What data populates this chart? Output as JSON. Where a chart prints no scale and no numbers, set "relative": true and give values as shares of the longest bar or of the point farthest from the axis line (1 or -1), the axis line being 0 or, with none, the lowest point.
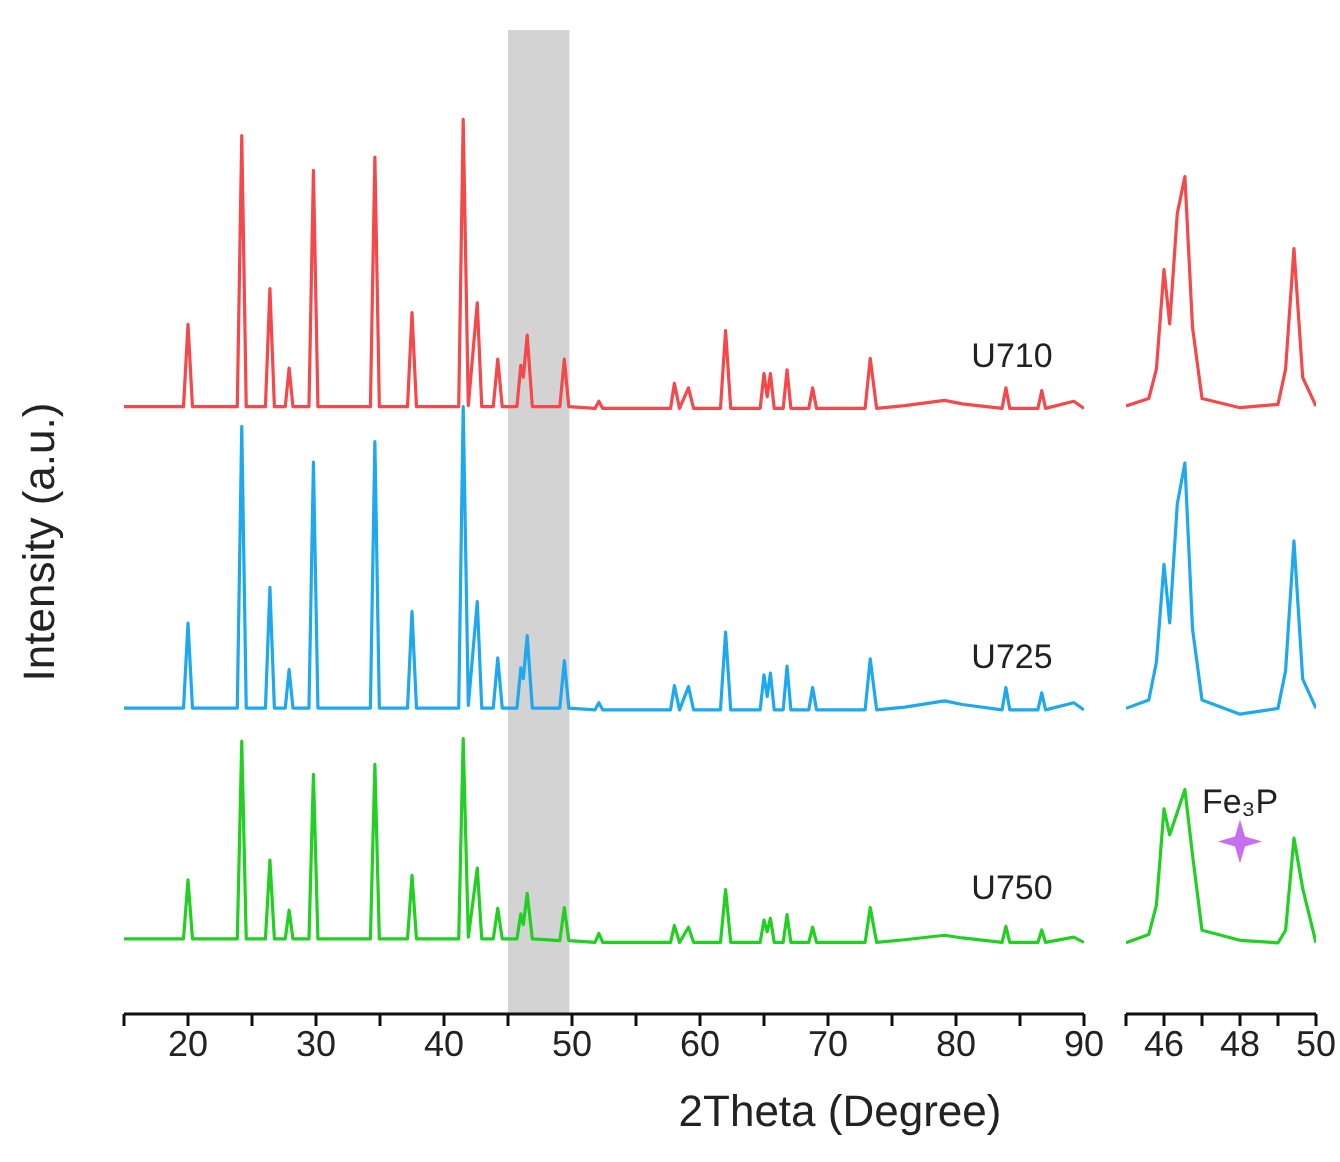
{
  "chart_data": [
    {
      "type": "line",
      "relative": true,
      "ylabel": "Intensity (a.u.)",
      "xlabel": "2Theta (Degree)",
      "xlim": [
        15,
        90
      ],
      "xticks": [
        {
          "value": 15,
          "label": null
        },
        20,
        {
          "value": 25,
          "label": null
        },
        30,
        {
          "value": 35,
          "label": null
        },
        40,
        {
          "value": 45,
          "label": null
        },
        50,
        {
          "value": 55,
          "label": null
        },
        60,
        {
          "value": 65,
          "label": null
        },
        70,
        {
          "value": 75,
          "label": null
        },
        80,
        {
          "value": 85,
          "label": null
        },
        90
      ],
      "marker": "none",
      "line_style": "solid",
      "bands": [
        {
          "axis": "x",
          "from": 45,
          "to": 49.8,
          "color": "#d3d3d3"
        }
      ],
      "x": [
        15,
        19.65,
        20,
        20.35,
        23.85,
        24.2,
        24.55,
        26.05,
        26.4,
        26.75,
        27.6,
        27.9,
        28.2,
        29.45,
        29.8,
        30.15,
        34.25,
        34.6,
        34.95,
        37.15,
        37.5,
        37.85,
        41.15,
        41.5,
        41.9,
        42.6,
        42.95,
        43.85,
        44.2,
        44.55,
        45.7,
        46.0,
        46.2,
        46.5,
        46.9,
        49.05,
        49.4,
        49.75,
        51.8,
        52.1,
        52.4,
        57.7,
        58,
        58.4,
        59.1,
        59.5,
        61.6,
        62,
        62.4,
        64.7,
        65,
        65.25,
        65.5,
        65.8,
        66.5,
        66.8,
        67.1,
        68.5,
        68.8,
        69.1,
        72.9,
        73.3,
        73.8,
        76,
        79.1,
        80.5,
        83.6,
        83.9,
        84.2,
        86.4,
        86.7,
        87,
        89.2,
        90
      ],
      "series": [
        {
          "name": "U710",
          "color": "#f4484a",
          "values": [
            0.679,
            0.679,
            0.771,
            0.679,
            0.679,
            0.982,
            0.679,
            0.679,
            0.811,
            0.679,
            0.679,
            0.722,
            0.679,
            0.679,
            0.943,
            0.679,
            0.679,
            0.958,
            0.679,
            0.679,
            0.784,
            0.679,
            0.679,
            1.0,
            0.68,
            0.795,
            0.679,
            0.679,
            0.732,
            0.679,
            0.679,
            0.725,
            0.712,
            0.759,
            0.679,
            0.679,
            0.732,
            0.679,
            0.677,
            0.685,
            0.677,
            0.677,
            0.705,
            0.677,
            0.7,
            0.677,
            0.677,
            0.764,
            0.677,
            0.677,
            0.716,
            0.69,
            0.716,
            0.677,
            0.677,
            0.72,
            0.677,
            0.677,
            0.7,
            0.677,
            0.677,
            0.733,
            0.677,
            0.68,
            0.686,
            0.682,
            0.677,
            0.7,
            0.677,
            0.677,
            0.697,
            0.677,
            0.685,
            0.677
          ]
        },
        {
          "name": "U725",
          "color": "#1ea8f0",
          "values": [
            0.342,
            0.342,
            0.437,
            0.342,
            0.342,
            0.657,
            0.342,
            0.342,
            0.477,
            0.342,
            0.342,
            0.385,
            0.342,
            0.342,
            0.617,
            0.342,
            0.342,
            0.64,
            0.342,
            0.342,
            0.45,
            0.342,
            0.342,
            0.679,
            0.345,
            0.461,
            0.342,
            0.342,
            0.398,
            0.342,
            0.342,
            0.387,
            0.375,
            0.423,
            0.342,
            0.342,
            0.395,
            0.342,
            0.34,
            0.348,
            0.34,
            0.34,
            0.367,
            0.34,
            0.366,
            0.34,
            0.34,
            0.427,
            0.34,
            0.34,
            0.379,
            0.355,
            0.381,
            0.34,
            0.34,
            0.389,
            0.34,
            0.34,
            0.365,
            0.34,
            0.34,
            0.397,
            0.34,
            0.343,
            0.35,
            0.346,
            0.34,
            0.365,
            0.34,
            0.34,
            0.359,
            0.34,
            0.348,
            0.34
          ]
        },
        {
          "name": "U750",
          "color": "#22d022",
          "values": [
            0.084,
            0.084,
            0.15,
            0.084,
            0.084,
            0.305,
            0.084,
            0.084,
            0.172,
            0.084,
            0.084,
            0.116,
            0.084,
            0.084,
            0.268,
            0.084,
            0.084,
            0.279,
            0.084,
            0.084,
            0.155,
            0.084,
            0.084,
            0.308,
            0.086,
            0.163,
            0.084,
            0.084,
            0.118,
            0.084,
            0.084,
            0.112,
            0.1,
            0.135,
            0.084,
            0.082,
            0.119,
            0.082,
            0.08,
            0.09,
            0.08,
            0.08,
            0.099,
            0.08,
            0.097,
            0.08,
            0.08,
            0.139,
            0.08,
            0.08,
            0.105,
            0.092,
            0.107,
            0.08,
            0.08,
            0.111,
            0.08,
            0.08,
            0.097,
            0.08,
            0.08,
            0.119,
            0.08,
            0.083,
            0.088,
            0.085,
            0.08,
            0.098,
            0.08,
            0.08,
            0.094,
            0.08,
            0.086,
            0.08
          ]
        }
      ]
    },
    {
      "type": "line",
      "relative": true,
      "xlim": [
        45,
        50
      ],
      "xticks": [
        {
          "value": 45,
          "label": null
        },
        46,
        {
          "value": 47,
          "label": null
        },
        48,
        {
          "value": 49,
          "label": null
        },
        50
      ],
      "marker": "none",
      "line_style": "solid",
      "annotations": [
        {
          "text": "Fe₃P",
          "x": 48,
          "y": 0.206
        }
      ],
      "x": [
        45,
        45.6,
        45.8,
        46.0,
        46.15,
        46.35,
        46.55,
        46.75,
        47.0,
        48.0,
        49.0,
        49.2,
        49.42,
        49.65,
        50
      ],
      "series": [
        {
          "color": "#f4484a",
          "values": [
            0.726,
            0.735,
            0.77,
            0.889,
            0.824,
            0.956,
            1.0,
            0.82,
            0.735,
            0.724,
            0.728,
            0.77,
            0.914,
            0.76,
            0.726
          ]
        },
        {
          "color": "#1ea8f0",
          "values": [
            0.365,
            0.375,
            0.42,
            0.537,
            0.467,
            0.609,
            0.658,
            0.46,
            0.375,
            0.358,
            0.365,
            0.41,
            0.565,
            0.4,
            0.365
          ]
        },
        {
          "color": "#22d022",
          "values": [
            0.085,
            0.095,
            0.13,
            0.245,
            0.214,
            0.241,
            0.268,
            0.19,
            0.1,
            0.088,
            0.085,
            0.1,
            0.21,
            0.15,
            0.085
          ]
        }
      ]
    }
  ]
}
